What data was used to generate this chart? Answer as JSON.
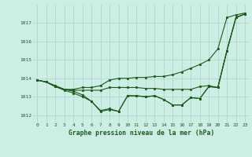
{
  "background_color": "#cceee4",
  "plot_bg_color": "#cceee4",
  "grid_color": "#aad4c8",
  "line_color": "#1a5c1a",
  "marker_color": "#1a5c1a",
  "title": "Graphe pression niveau de la mer (hPa)",
  "ylim": [
    1011.6,
    1018.0
  ],
  "xlim": [
    -0.5,
    23.5
  ],
  "yticks": [
    1012,
    1013,
    1014,
    1015,
    1016,
    1017
  ],
  "xticks": [
    0,
    1,
    2,
    3,
    4,
    5,
    6,
    7,
    8,
    9,
    10,
    11,
    12,
    13,
    14,
    15,
    16,
    17,
    18,
    19,
    20,
    21,
    22,
    23
  ],
  "series": [
    [
      1013.9,
      1013.8,
      1013.6,
      1013.4,
      1013.4,
      1013.5,
      1013.5,
      1013.6,
      1013.9,
      1014.0,
      1014.0,
      1014.05,
      1014.05,
      1014.1,
      1014.1,
      1014.2,
      1014.35,
      1014.55,
      1014.75,
      1015.0,
      1015.6,
      1017.3,
      1017.45,
      1017.55
    ],
    [
      1013.9,
      1013.8,
      1013.55,
      1013.35,
      1013.2,
      1013.0,
      1012.75,
      1012.2,
      1012.3,
      1012.2,
      1013.05,
      1013.05,
      1013.0,
      1013.05,
      1012.85,
      1012.55,
      1012.55,
      1012.95,
      1012.9,
      1013.55,
      1013.5,
      1015.5,
      1017.3,
      1017.5
    ],
    [
      1013.9,
      1013.8,
      1013.55,
      1013.4,
      1013.35,
      1013.35,
      1013.35,
      1013.35,
      1013.5,
      1013.5,
      1013.5,
      1013.5,
      1013.45,
      1013.45,
      1013.4,
      1013.4,
      1013.4,
      1013.4,
      1013.55,
      1013.6,
      1013.5,
      1015.5,
      1017.3,
      1017.5
    ],
    [
      1013.9,
      1013.8,
      1013.55,
      1013.4,
      1013.3,
      1013.1,
      1012.75,
      1012.25,
      1012.35,
      1012.2,
      1013.05,
      1013.05,
      1013.0,
      1013.05,
      1012.85,
      1012.55,
      1012.55,
      1012.95,
      1012.9,
      1013.55,
      1013.5,
      1015.5,
      1017.3,
      1017.5
    ]
  ]
}
